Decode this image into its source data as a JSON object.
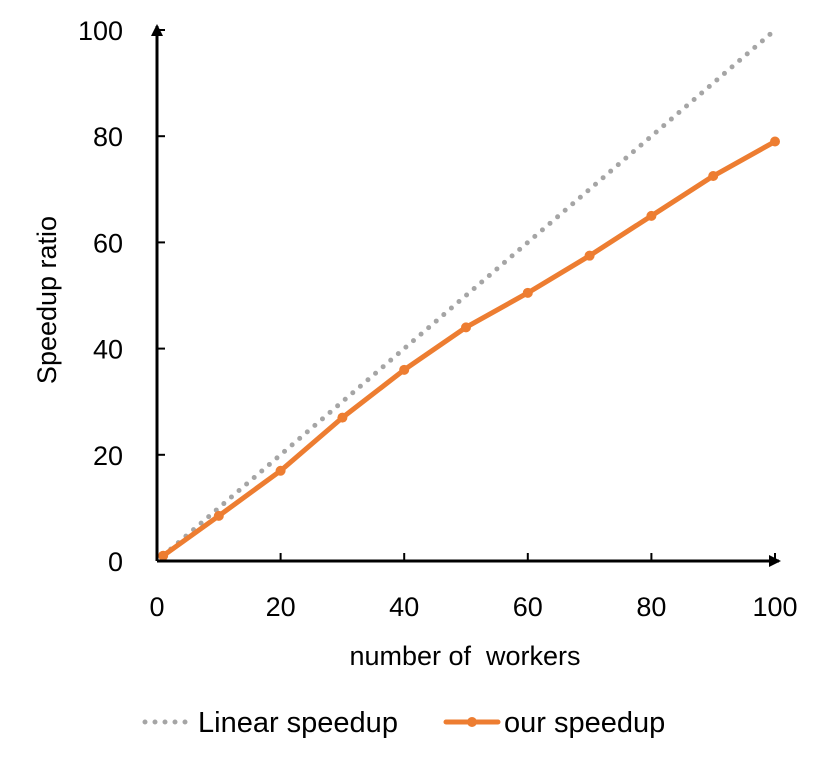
{
  "chart_data": {
    "type": "line",
    "title": "",
    "xlabel": "number of  workers",
    "ylabel": "Speedup ratio",
    "xlim": [
      0,
      100
    ],
    "ylim": [
      0,
      100
    ],
    "x_ticks": [
      0,
      20,
      40,
      60,
      80,
      100
    ],
    "y_ticks": [
      0,
      20,
      40,
      60,
      80,
      100
    ],
    "grid": false,
    "legend_position": "bottom",
    "series": [
      {
        "name": "Linear speedup",
        "style": "dotted",
        "color": "#a5a5a5",
        "x": [
          1,
          100
        ],
        "y": [
          1,
          100
        ]
      },
      {
        "name": "our speedup",
        "style": "solid",
        "color": "#ed7d31",
        "x": [
          1,
          10,
          20,
          30,
          40,
          50,
          60,
          70,
          80,
          90,
          100
        ],
        "y": [
          1,
          8.5,
          17,
          27,
          36,
          44,
          50.5,
          57.5,
          65,
          72.5,
          79
        ]
      }
    ]
  }
}
